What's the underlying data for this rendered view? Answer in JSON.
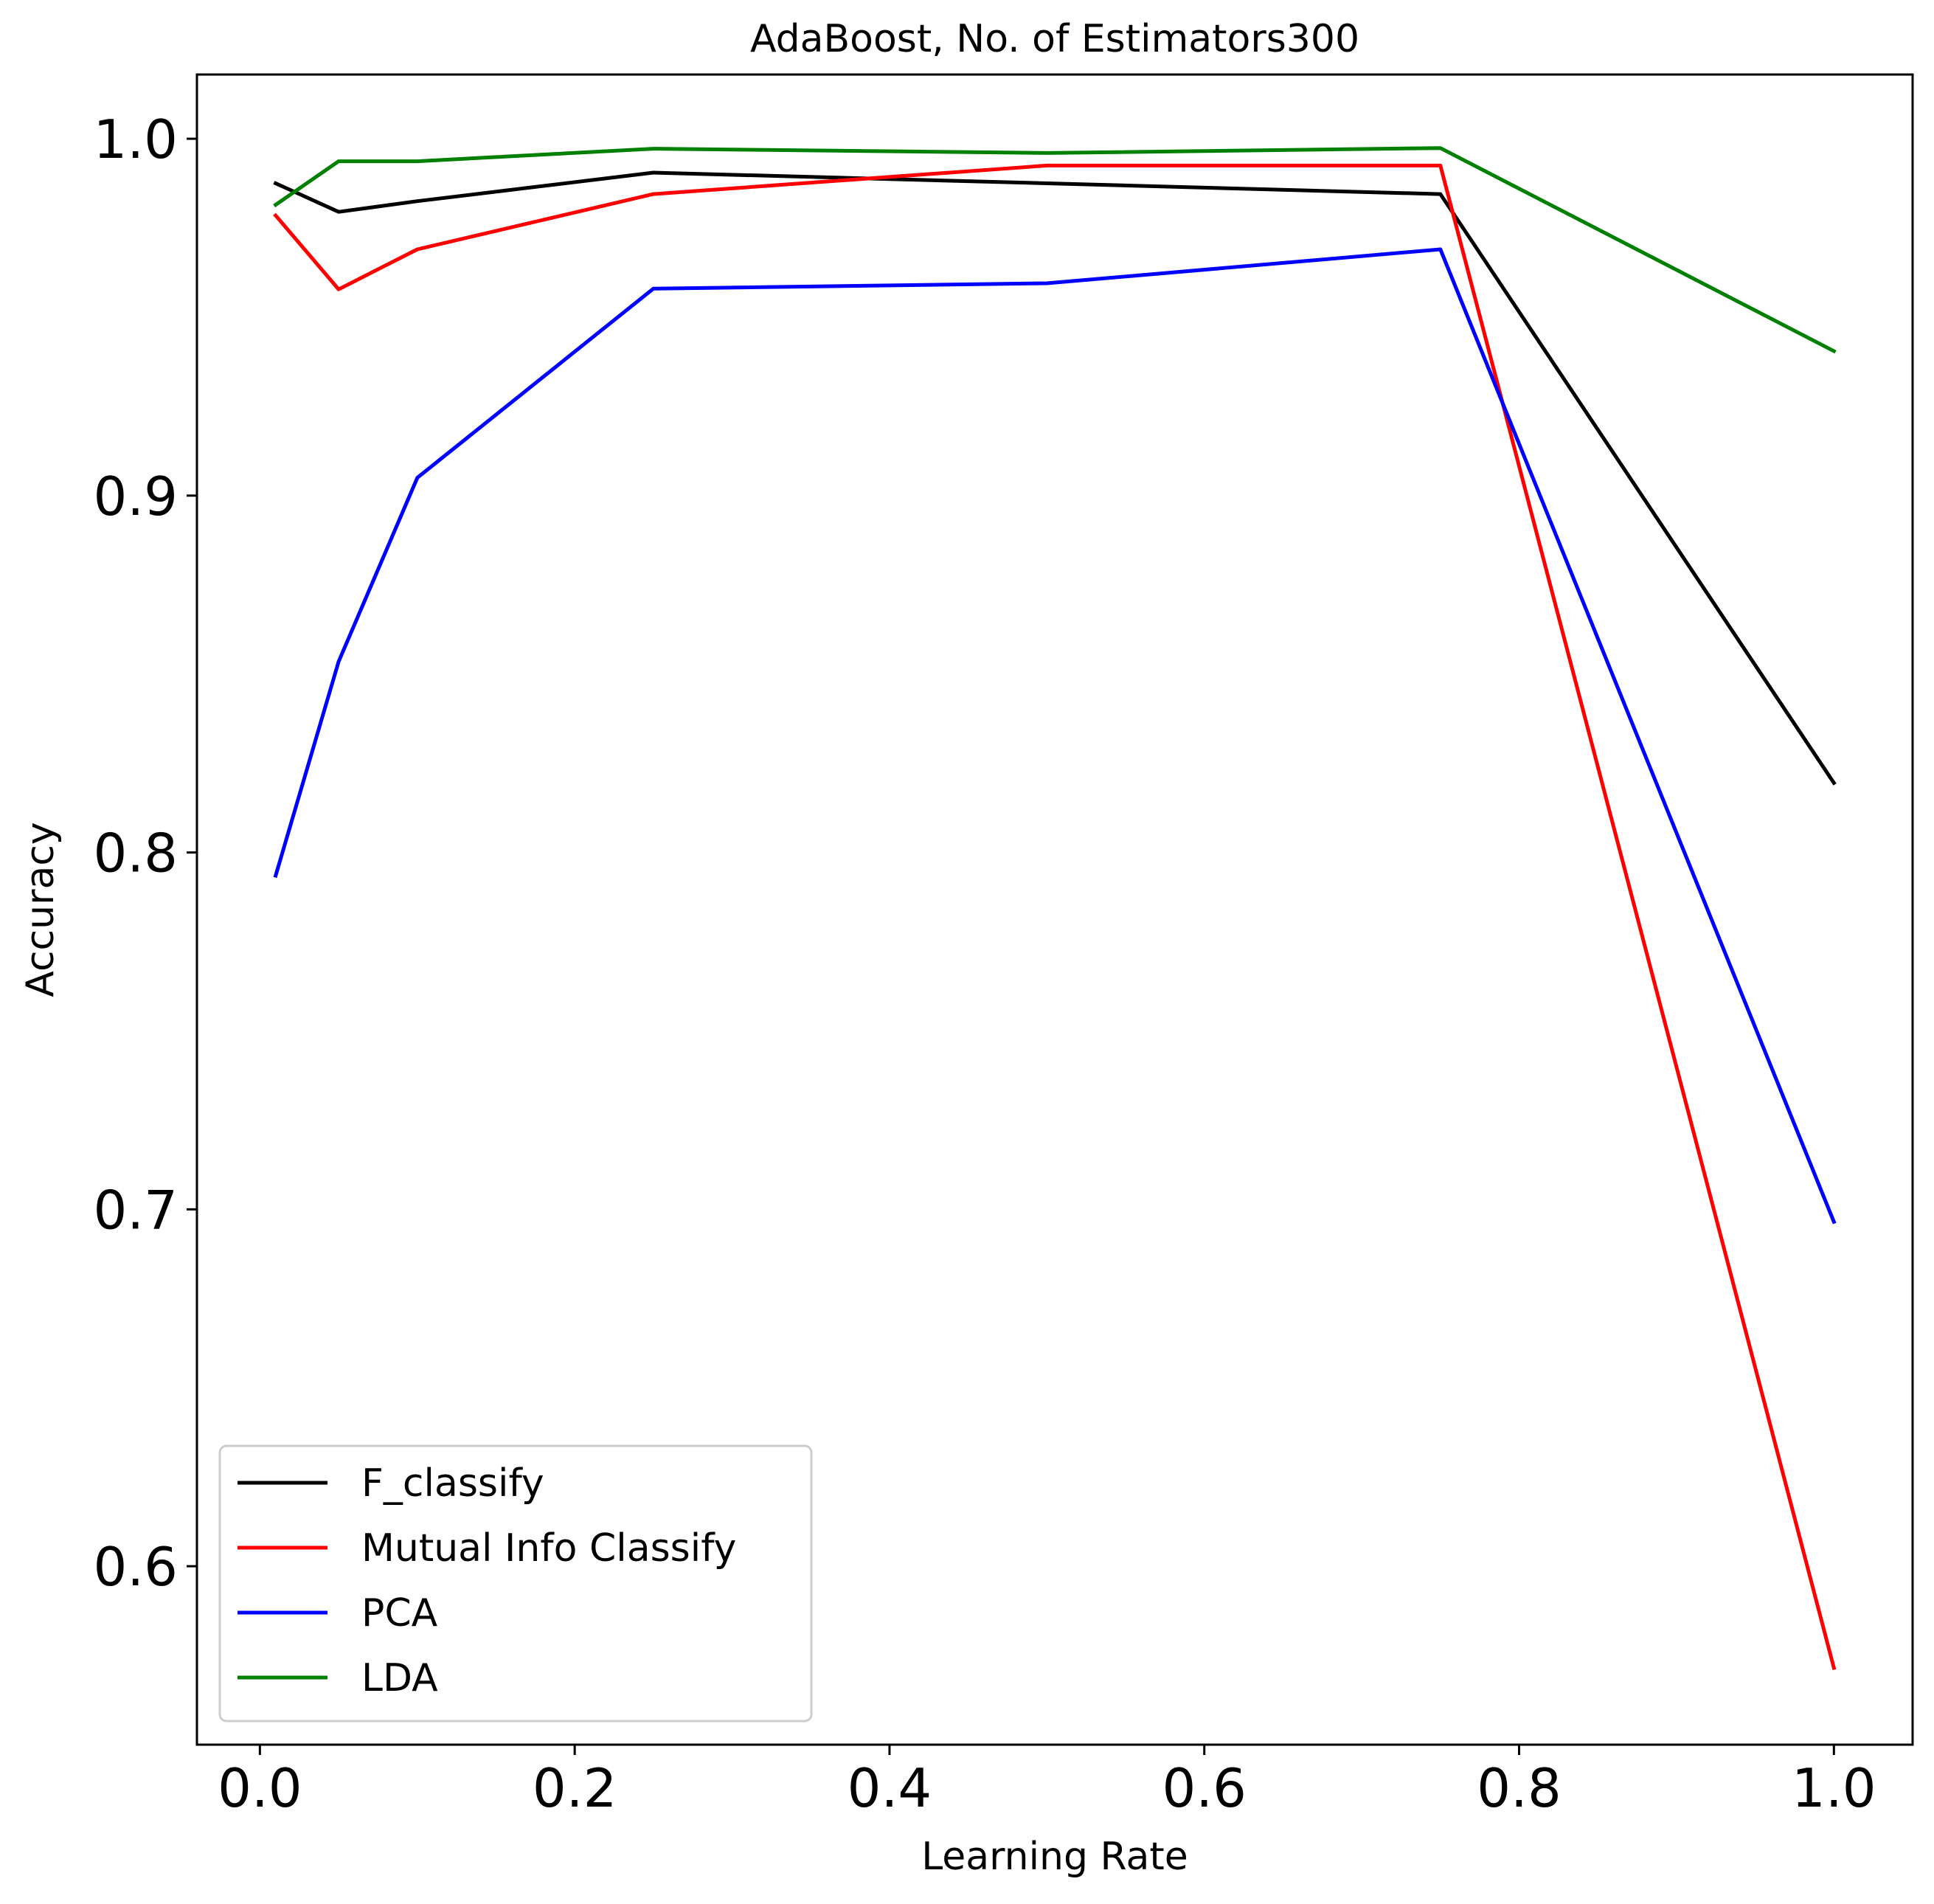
{
  "chart_data": {
    "type": "line",
    "title": "AdaBoost, No. of Estimators300",
    "xlabel": "Learning Rate",
    "ylabel": "Accuracy",
    "xlim": [
      -0.04,
      1.05
    ],
    "ylim": [
      0.55,
      1.018
    ],
    "xticks": [
      0.0,
      0.2,
      0.4,
      0.6,
      0.8,
      1.0
    ],
    "xtick_labels": [
      "0.0",
      "0.2",
      "0.4",
      "0.6",
      "0.8",
      "1.0"
    ],
    "yticks": [
      0.6,
      0.7,
      0.8,
      0.9,
      1.0
    ],
    "ytick_labels": [
      "0.6",
      "0.7",
      "0.8",
      "0.9",
      "1.0"
    ],
    "grid": false,
    "legend_position": "lower-left",
    "x": [
      0.01,
      0.05,
      0.1,
      0.25,
      0.5,
      0.75,
      1.0
    ],
    "series": [
      {
        "name": "F_classify",
        "color": "#000000",
        "values": [
          0.9875,
          0.9795,
          0.9825,
          0.9905,
          0.9875,
          0.9845,
          0.8195
        ]
      },
      {
        "name": "Mutual Info Classify",
        "color": "#ff0000",
        "values": [
          0.9785,
          0.9578,
          0.969,
          0.9845,
          0.9925,
          0.9925,
          0.5715
        ]
      },
      {
        "name": "PCA",
        "color": "#0000ff",
        "values": [
          0.7935,
          0.8535,
          0.905,
          0.958,
          0.9595,
          0.969,
          0.6965
        ]
      },
      {
        "name": "LDA",
        "color": "#008000",
        "values": [
          0.9815,
          0.9937,
          0.9937,
          0.9972,
          0.996,
          0.9974,
          0.9405
        ]
      }
    ]
  }
}
